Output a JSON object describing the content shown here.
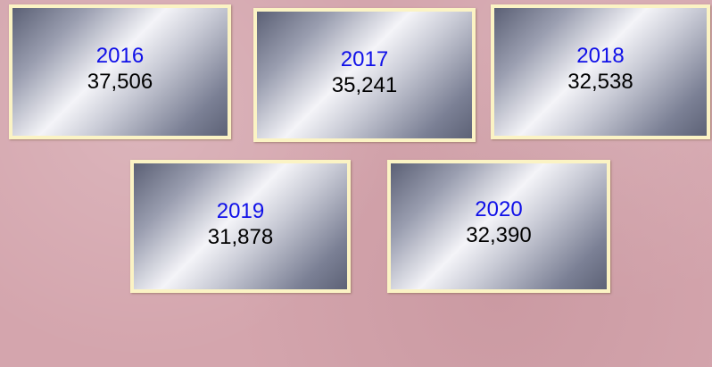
{
  "cards": [
    {
      "year": "2016",
      "value": "37,506"
    },
    {
      "year": "2017",
      "value": "35,241"
    },
    {
      "year": "2018",
      "value": "32,538"
    },
    {
      "year": "2019",
      "value": "31,878"
    },
    {
      "year": "2020",
      "value": "32,390"
    }
  ]
}
